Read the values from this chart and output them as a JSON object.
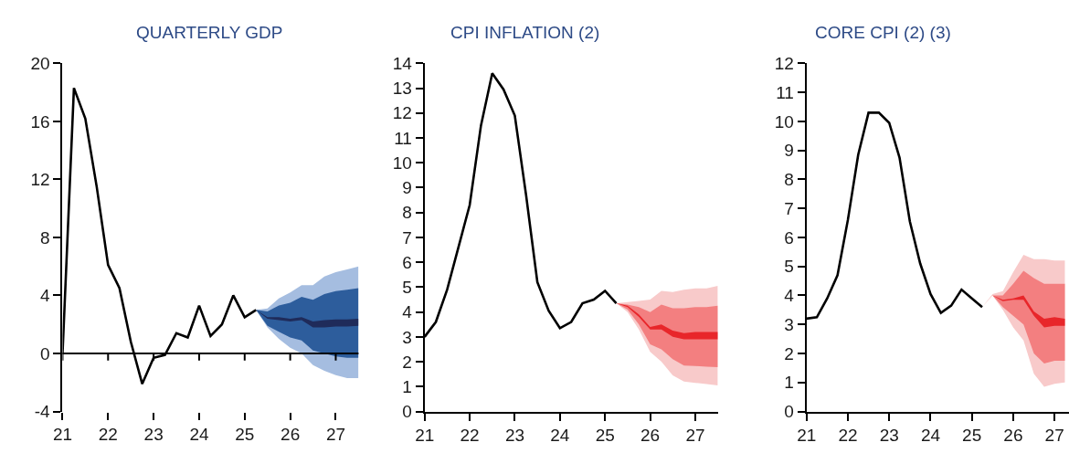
{
  "chart_data": [
    {
      "type": "line",
      "title": "QUARTERLY GDP",
      "xlim": [
        2021,
        2027.5
      ],
      "xticks": [
        {
          "value": 2021,
          "label": "21"
        },
        {
          "value": 2022,
          "label": "22"
        },
        {
          "value": 2023,
          "label": "23"
        },
        {
          "value": 2024,
          "label": "24"
        },
        {
          "value": 2025,
          "label": "25"
        },
        {
          "value": 2026,
          "label": "26"
        },
        {
          "value": 2027,
          "label": "27"
        }
      ],
      "ylim": [
        -4,
        20
      ],
      "yticks": [
        -4,
        0,
        4,
        8,
        12,
        16,
        20
      ],
      "ref_lines": [
        {
          "axis": "y",
          "value": 0,
          "color": "#000000"
        }
      ],
      "series": [
        {
          "color": "#a5bde0",
          "x": [
            2025.25,
            2025.5,
            2025.75,
            2026,
            2026.25,
            2026.5,
            2026.75,
            2027,
            2027.25,
            2027.5
          ],
          "values": [
            null,
            null,
            null,
            null,
            null,
            null,
            null,
            null,
            null,
            null
          ],
          "lower": [
            3.0,
            1.8,
            1.0,
            0.4,
            0.0,
            -0.8,
            -1.2,
            -1.5,
            -1.7,
            -1.7
          ],
          "upper": [
            3.0,
            3.1,
            3.8,
            4.2,
            4.7,
            4.7,
            5.3,
            5.6,
            5.8,
            6.0
          ]
        },
        {
          "color": "#2d5d9c",
          "x": [
            2025.25,
            2025.5,
            2025.75,
            2026,
            2026.25,
            2026.5,
            2026.75,
            2027,
            2027.25,
            2027.5
          ],
          "values": [
            null,
            null,
            null,
            null,
            null,
            null,
            null,
            null,
            null,
            null
          ],
          "lower": [
            3.0,
            1.9,
            1.5,
            1.1,
            0.9,
            0.2,
            0.0,
            -0.2,
            -0.3,
            -0.3
          ],
          "upper": [
            3.0,
            2.9,
            3.3,
            3.5,
            3.9,
            3.7,
            4.1,
            4.3,
            4.4,
            4.5
          ]
        },
        {
          "color": "#1f2b5a",
          "x": [
            2025.25,
            2025.5,
            2025.75,
            2026,
            2026.25,
            2026.5,
            2026.75,
            2027,
            2027.25,
            2027.5
          ],
          "values": [
            null,
            null,
            null,
            null,
            null,
            null,
            null,
            null,
            null,
            null
          ],
          "lower": [
            3.0,
            2.4,
            2.3,
            2.2,
            2.3,
            1.8,
            1.8,
            1.85,
            1.85,
            1.9
          ],
          "upper": [
            3.0,
            2.5,
            2.5,
            2.4,
            2.5,
            2.2,
            2.3,
            2.35,
            2.35,
            2.4
          ]
        },
        {
          "color": "#000000",
          "x": [
            2021,
            2021.25,
            2021.5,
            2021.75,
            2022,
            2022.25,
            2022.5,
            2022.75,
            2023,
            2023.25,
            2023.5,
            2023.75,
            2024,
            2024.25,
            2024.5,
            2024.75,
            2025,
            2025.25
          ],
          "values": [
            0,
            18.3,
            16.2,
            11.5,
            6.1,
            4.5,
            0.8,
            -2.1,
            -0.3,
            -0.1,
            1.4,
            1.1,
            3.3,
            1.2,
            2.0,
            4.0,
            2.5,
            3.0
          ]
        }
      ]
    },
    {
      "type": "line",
      "title": "CPI INFLATION (2)",
      "xlim": [
        2021,
        2027.5
      ],
      "xticks": [
        {
          "value": 2021,
          "label": "21"
        },
        {
          "value": 2022,
          "label": "22"
        },
        {
          "value": 2023,
          "label": "23"
        },
        {
          "value": 2024,
          "label": "24"
        },
        {
          "value": 2025,
          "label": "25"
        },
        {
          "value": 2026,
          "label": "26"
        },
        {
          "value": 2027,
          "label": "27"
        }
      ],
      "ylim": [
        0,
        14
      ],
      "yticks": [
        0,
        1,
        2,
        3,
        4,
        5,
        6,
        7,
        8,
        9,
        10,
        11,
        12,
        13,
        14
      ],
      "series": [
        {
          "color": "#f8caca",
          "x": [
            2025.25,
            2025.5,
            2025.75,
            2026,
            2026.25,
            2026.5,
            2026.75,
            2027,
            2027.25,
            2027.5
          ],
          "values": [
            null,
            null,
            null,
            null,
            null,
            null,
            null,
            null,
            null,
            null
          ],
          "lower": [
            4.35,
            4.0,
            3.3,
            2.4,
            2.0,
            1.45,
            1.2,
            1.15,
            1.1,
            1.05
          ],
          "upper": [
            4.35,
            4.4,
            4.45,
            4.5,
            4.85,
            4.8,
            4.9,
            4.95,
            4.95,
            5.05
          ]
        },
        {
          "color": "#f37f80",
          "x": [
            2025.25,
            2025.5,
            2025.75,
            2026,
            2026.25,
            2026.5,
            2026.75,
            2027,
            2027.25,
            2027.5
          ],
          "values": [
            null,
            null,
            null,
            null,
            null,
            null,
            null,
            null,
            null,
            null
          ],
          "lower": [
            4.35,
            4.1,
            3.5,
            2.7,
            2.5,
            2.1,
            1.85,
            1.83,
            1.8,
            1.78
          ],
          "upper": [
            4.35,
            4.3,
            4.2,
            4.0,
            4.3,
            4.15,
            4.15,
            4.2,
            4.2,
            4.25
          ]
        },
        {
          "color": "#e8262a",
          "x": [
            2025.25,
            2025.5,
            2025.75,
            2026,
            2026.25,
            2026.5,
            2026.75,
            2027,
            2027.25,
            2027.5
          ],
          "values": [
            null,
            null,
            null,
            null,
            null,
            null,
            null,
            null,
            null,
            null
          ],
          "lower": [
            4.35,
            4.2,
            3.8,
            3.3,
            3.3,
            3.0,
            2.9,
            2.9,
            2.9,
            2.9
          ],
          "upper": [
            4.35,
            4.25,
            3.9,
            3.4,
            3.5,
            3.25,
            3.15,
            3.2,
            3.2,
            3.2
          ]
        },
        {
          "color": "#000000",
          "x": [
            2021,
            2021.25,
            2021.5,
            2021.75,
            2022,
            2022.25,
            2022.5,
            2022.75,
            2023,
            2023.25,
            2023.5,
            2023.75,
            2024,
            2024.25,
            2024.5,
            2024.75,
            2025,
            2025.25
          ],
          "values": [
            3.0,
            3.6,
            4.9,
            6.6,
            8.3,
            11.5,
            13.6,
            12.95,
            11.9,
            8.7,
            5.2,
            4.05,
            3.35,
            3.6,
            4.35,
            4.5,
            4.85,
            4.35
          ]
        }
      ]
    },
    {
      "type": "line",
      "title": "CORE CPI (2) (3)",
      "xlim": [
        2021,
        2027.35
      ],
      "xticks": [
        {
          "value": 2021,
          "label": "21"
        },
        {
          "value": 2022,
          "label": "22"
        },
        {
          "value": 2023,
          "label": "23"
        },
        {
          "value": 2024,
          "label": "24"
        },
        {
          "value": 2025,
          "label": "25"
        },
        {
          "value": 2026,
          "label": "26"
        },
        {
          "value": 2027,
          "label": "27"
        }
      ],
      "ylim": [
        0,
        12
      ],
      "yticks": [
        0,
        1,
        2,
        3,
        4,
        5,
        6,
        7,
        8,
        9,
        10,
        11,
        12
      ],
      "series": [
        {
          "color": "#f8caca",
          "x": [
            2025.25,
            2025.5,
            2025.75,
            2026,
            2026.25,
            2026.5,
            2026.75,
            2027,
            2027.25
          ],
          "values": [
            null,
            null,
            null,
            null,
            null,
            null,
            null,
            null,
            null
          ],
          "lower": [
            3.6,
            4.0,
            3.5,
            2.9,
            2.45,
            1.3,
            0.85,
            0.95,
            1.0
          ],
          "upper": [
            3.6,
            4.05,
            4.15,
            4.8,
            5.4,
            5.25,
            5.25,
            5.2,
            5.2
          ]
        },
        {
          "color": "#f37f80",
          "x": [
            2025.25,
            2025.5,
            2025.75,
            2026,
            2026.25,
            2026.5,
            2026.75,
            2027,
            2027.25
          ],
          "values": [
            null,
            null,
            null,
            null,
            null,
            null,
            null,
            null,
            null
          ],
          "lower": [
            3.6,
            4.0,
            3.6,
            3.3,
            3.0,
            2.0,
            1.65,
            1.75,
            1.75
          ],
          "upper": [
            3.6,
            4.0,
            4.0,
            4.4,
            4.85,
            4.6,
            4.4,
            4.4,
            4.4
          ]
        },
        {
          "color": "#e8262a",
          "x": [
            2025.25,
            2025.5,
            2025.75,
            2026,
            2026.25,
            2026.5,
            2026.75,
            2027,
            2027.25
          ],
          "values": [
            null,
            null,
            null,
            null,
            null,
            null,
            null,
            null,
            null
          ],
          "lower": [
            3.6,
            4.0,
            3.8,
            3.85,
            3.85,
            3.3,
            2.9,
            2.95,
            2.95
          ],
          "upper": [
            3.6,
            4.0,
            3.85,
            3.9,
            4.0,
            3.45,
            3.2,
            3.25,
            3.2
          ]
        },
        {
          "color": "#000000",
          "x": [
            2021,
            2021.25,
            2021.5,
            2021.75,
            2022,
            2022.25,
            2022.5,
            2022.75,
            2023,
            2023.25,
            2023.5,
            2023.75,
            2024,
            2024.25,
            2024.5,
            2024.75,
            2025,
            2025.25
          ],
          "values": [
            3.2,
            3.25,
            3.9,
            4.7,
            6.6,
            8.85,
            10.3,
            10.3,
            9.95,
            8.75,
            6.55,
            5.1,
            4.05,
            3.4,
            3.65,
            4.2,
            3.9,
            3.6
          ]
        }
      ]
    }
  ]
}
